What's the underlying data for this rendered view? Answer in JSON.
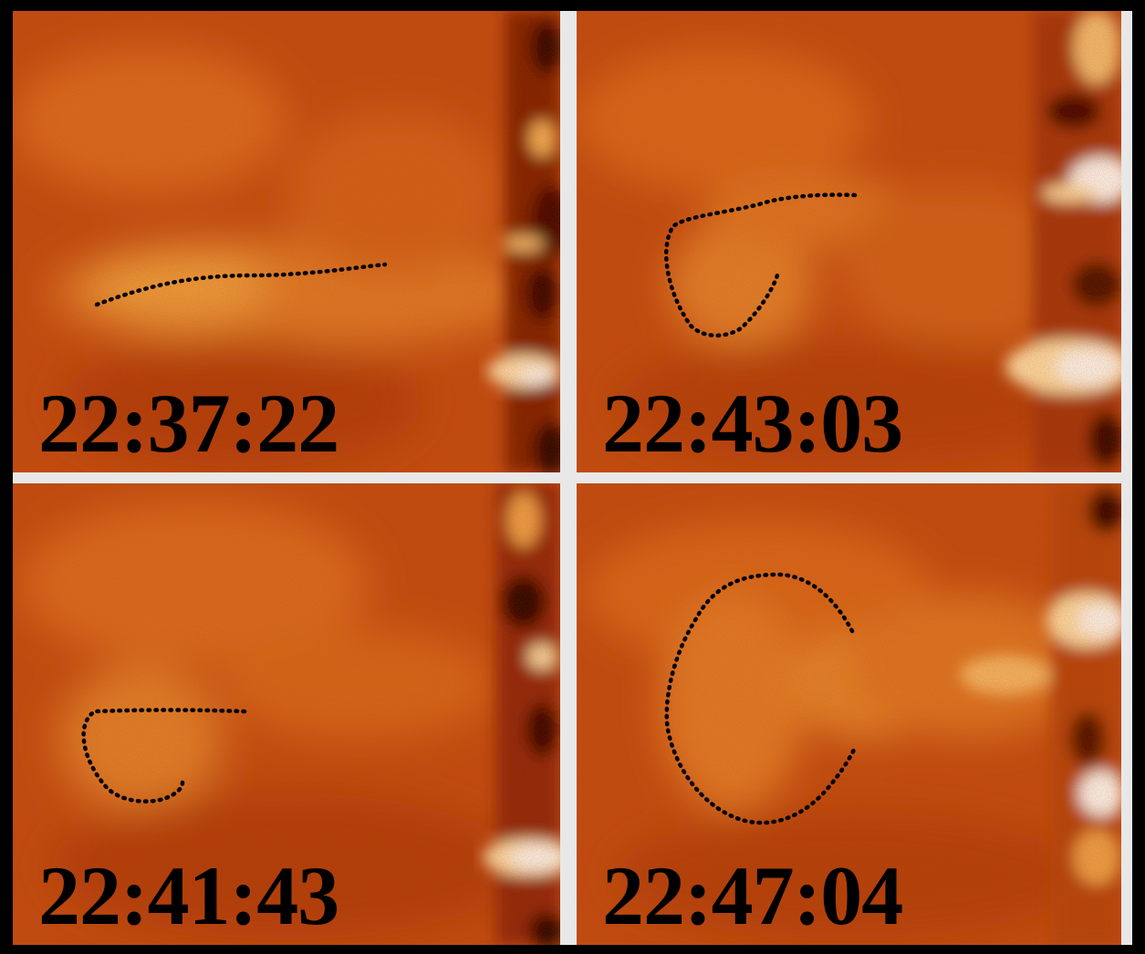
{
  "figure": {
    "background_color": "#000000",
    "separator_color": "#e8e8e8",
    "colormap": [
      "#2a0000",
      "#7a1400",
      "#b53a10",
      "#d8641c",
      "#f09a3c",
      "#ffd28a",
      "#ffffff"
    ],
    "panels": [
      {
        "id": "top-left",
        "timestamp": "22:37:22"
      },
      {
        "id": "top-right",
        "timestamp": "22:43:03"
      },
      {
        "id": "bottom-left",
        "timestamp": "22:41:43"
      },
      {
        "id": "bottom-right",
        "timestamp": "22:47:04"
      }
    ]
  }
}
